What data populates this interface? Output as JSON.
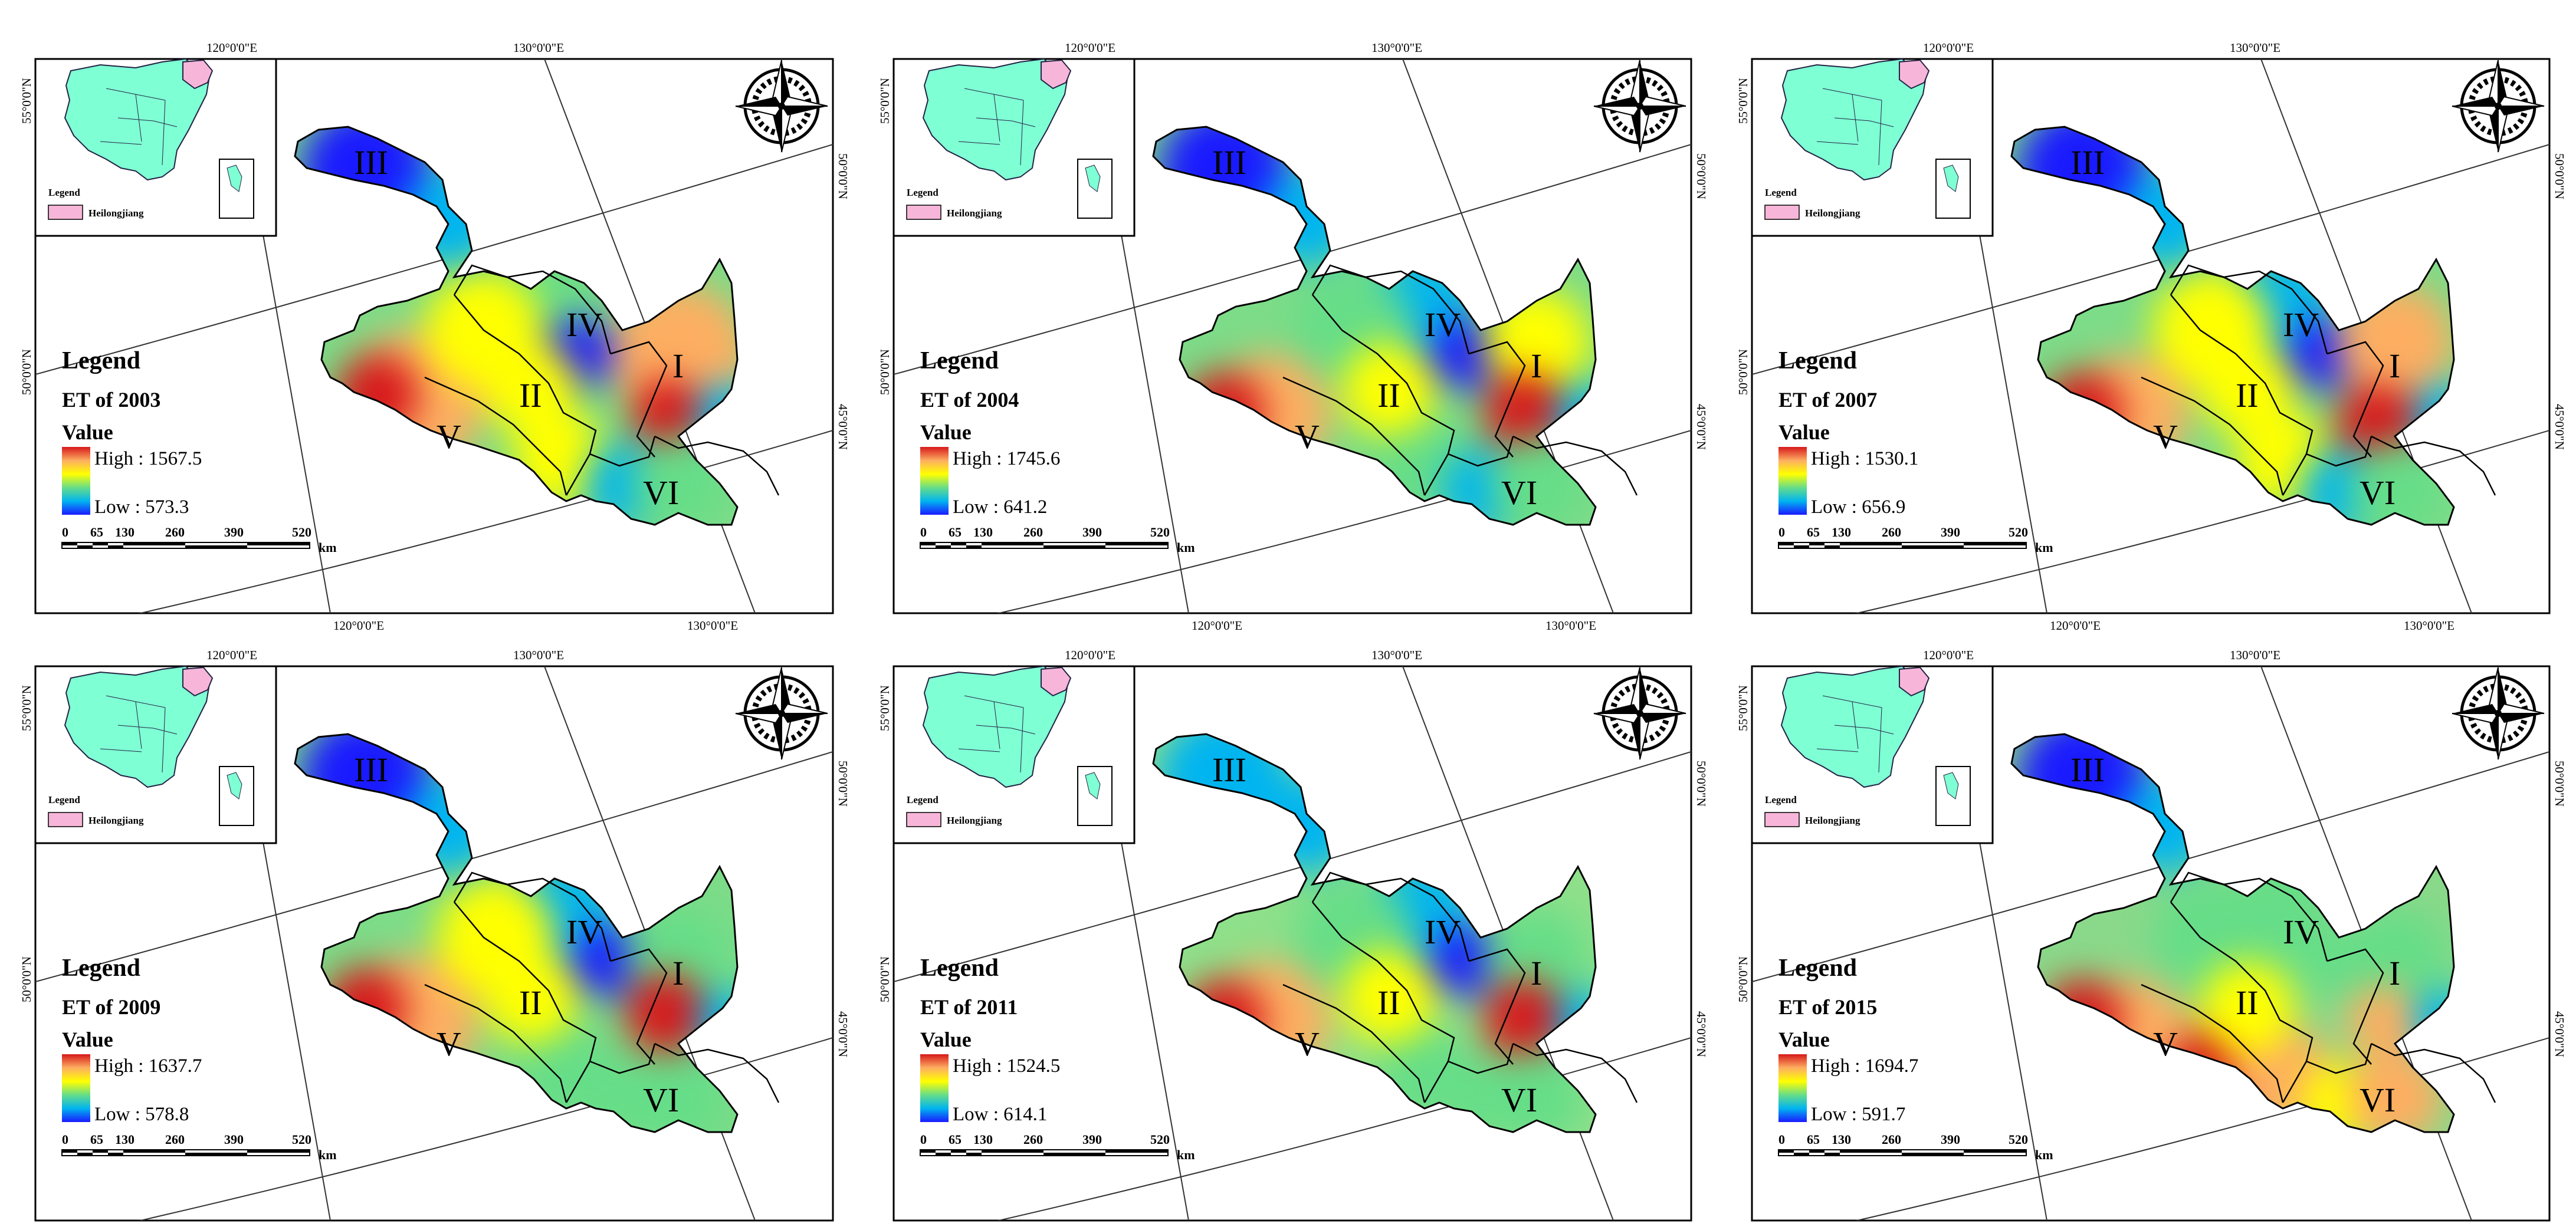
{
  "labels": {
    "legend": "Legend",
    "value": "Value",
    "inset_legend": "Legend",
    "inset_item": "Heilongjiang",
    "scale_unit": "km",
    "scale_ticks": [
      "0",
      "65",
      "130",
      "260",
      "390",
      "520"
    ],
    "lon_120": "120°0'0\"E",
    "lon_130": "130°0'0\"E",
    "lat_55": "55°0'0\"N",
    "lat_50": "50°0'0\"N",
    "lat_45": "45°0'0\"N",
    "regions": [
      "I",
      "II",
      "III",
      "IV",
      "V",
      "VI"
    ]
  },
  "colors": {
    "ramp": [
      "#d7191c",
      "#fdae61",
      "#ffff00",
      "#66dd88",
      "#00b4f0",
      "#1a1aff"
    ],
    "inset_land": "#7fffd4",
    "heilongjiang": "#f7b6d9"
  },
  "panels": [
    {
      "title": "ET of 2003",
      "high": "High : 1567.5",
      "low": "Low : 573.3"
    },
    {
      "title": "ET of 2004",
      "high": "High : 1745.6",
      "low": "Low : 641.2"
    },
    {
      "title": "ET of 2007",
      "high": "High : 1530.1",
      "low": "Low : 656.9"
    },
    {
      "title": "ET of 2009",
      "high": "High : 1637.7",
      "low": "Low : 578.8"
    },
    {
      "title": "ET of 2011",
      "high": "High : 1524.5",
      "low": "Low : 614.1"
    },
    {
      "title": "ET of 2015",
      "high": "High : 1694.7",
      "low": "Low : 591.7"
    }
  ]
}
